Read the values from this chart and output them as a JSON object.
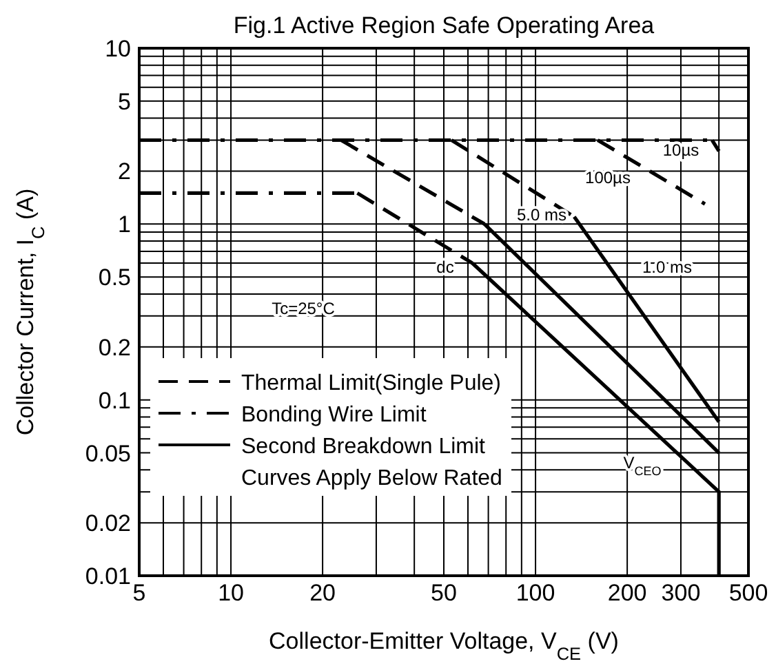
{
  "chart_data": {
    "type": "line",
    "title": "Fig.1 Active Region Safe Operating Area",
    "xlabel": "Collector-Emitter Voltage, V$_{CE}$ (V)",
    "ylabel": "Collector Current, I$_{C}$ (A)",
    "log": "xy",
    "grid": true,
    "legend": "bottom left",
    "xlim": [
      5,
      500
    ],
    "ylim": [
      0.01,
      10
    ],
    "xticks": [
      5,
      {
        "value": 6,
        "label": null
      },
      {
        "value": 7,
        "label": null
      },
      {
        "value": 8,
        "label": null
      },
      {
        "value": 9,
        "label": null
      },
      10,
      20,
      {
        "value": 30,
        "label": null
      },
      {
        "value": 40,
        "label": null
      },
      50,
      {
        "value": 60,
        "label": null
      },
      {
        "value": 70,
        "label": null
      },
      {
        "value": 80,
        "label": null
      },
      {
        "value": 90,
        "label": null
      },
      100,
      200,
      300,
      {
        "value": 400,
        "label": null
      },
      500
    ],
    "yticks": [
      0.01,
      0.02,
      {
        "value": 0.03,
        "label": null
      },
      {
        "value": 0.04,
        "label": null
      },
      0.05,
      {
        "value": 0.06,
        "label": null
      },
      {
        "value": 0.07,
        "label": null
      },
      {
        "value": 0.08,
        "label": null
      },
      {
        "value": 0.09,
        "label": null
      },
      0.1,
      0.2,
      {
        "value": 0.3,
        "label": null
      },
      {
        "value": 0.4,
        "label": null
      },
      0.5,
      {
        "value": 0.6,
        "label": null
      },
      {
        "value": 0.7,
        "label": null
      },
      {
        "value": 0.8,
        "label": null
      },
      {
        "value": 0.9,
        "label": null
      },
      1,
      2,
      {
        "value": 3,
        "label": null
      },
      {
        "value": 4,
        "label": null
      },
      5,
      {
        "value": 6,
        "label": null
      },
      {
        "value": 7,
        "label": null
      },
      {
        "value": 8,
        "label": null
      },
      {
        "value": 9,
        "label": null
      },
      10
    ],
    "series": [
      {
        "name": "Thermal Limit(Single Pule)",
        "color": "#000000",
        "line_style": "dashed",
        "x": [
          23,
          68
        ],
        "values": [
          3,
          1.0
        ]
      },
      {
        "color": "#000000",
        "line_style": "dashed",
        "x": [
          26,
          62
        ],
        "values": [
          1.5,
          0.6
        ]
      },
      {
        "color": "#000000",
        "line_style": "dashed",
        "x": [
          53,
          134
        ],
        "values": [
          3,
          1.1
        ]
      },
      {
        "color": "#000000",
        "line_style": "dashed",
        "x": [
          160,
          360
        ],
        "values": [
          3,
          1.3
        ]
      },
      {
        "color": "#000000",
        "line_style": "dashed",
        "x": [
          380,
          400
        ],
        "values": [
          3,
          2.6
        ]
      },
      {
        "name": "Bonding Wire Limit",
        "color": "#000000",
        "line_style": "dashdot",
        "x": [
          5,
          380
        ],
        "values": [
          3,
          3
        ]
      },
      {
        "color": "#000000",
        "line_style": "dashdot",
        "x": [
          5,
          26
        ],
        "values": [
          1.5,
          1.5
        ]
      },
      {
        "name": "Second Breakdown Limit",
        "color": "#000000",
        "line_style": "solid",
        "x": [
          68,
          400
        ],
        "values": [
          1.0,
          0.05
        ]
      },
      {
        "color": "#000000",
        "line_style": "solid",
        "x": [
          62,
          400,
          400
        ],
        "values": [
          0.6,
          0.03,
          0.01
        ]
      },
      {
        "color": "#000000",
        "line_style": "solid",
        "x": [
          134,
          400
        ],
        "values": [
          1.1,
          0.075
        ]
      }
    ],
    "annotations": [
      "Tc=25°C",
      "Curves Apply Below Rated",
      "10µs",
      "100µs",
      "5.0 ms",
      "1.0 ms",
      "dc",
      "V$_{CEO}$"
    ]
  }
}
